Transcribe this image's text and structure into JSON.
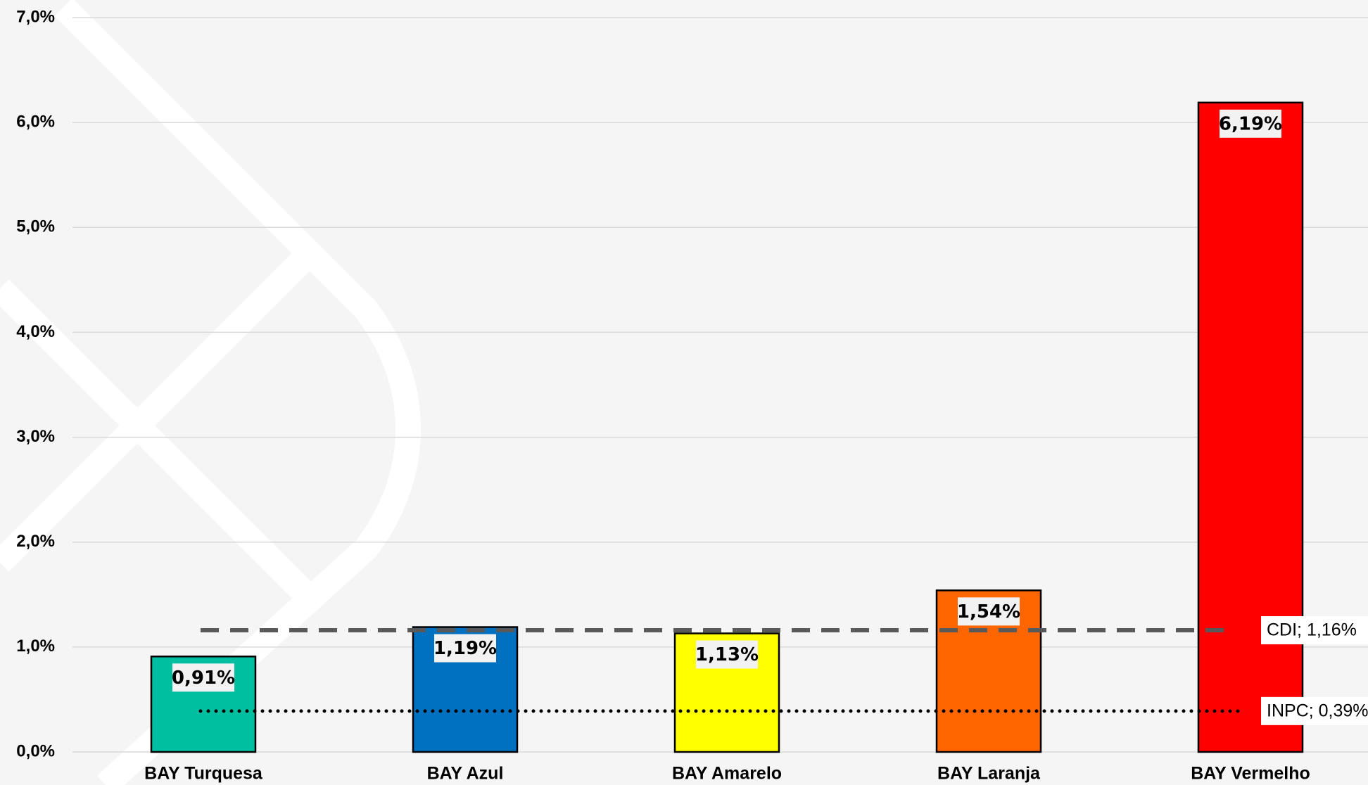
{
  "chart_data": {
    "type": "bar",
    "categories": [
      "BAY Turquesa",
      "BAY Azul",
      "BAY Amarelo",
      "BAY Laranja",
      "BAY Vermelho"
    ],
    "values": [
      0.91,
      1.19,
      1.13,
      1.54,
      6.19
    ],
    "value_labels": [
      "0,91%",
      "1,19%",
      "1,13%",
      "1,54%",
      "6,19%"
    ],
    "colors": [
      "#00bfa0",
      "#0070c0",
      "#ffff00",
      "#ff6600",
      "#ff0000"
    ],
    "ylim": [
      0,
      7
    ],
    "yticks": [
      {
        "value": 0,
        "label": "0,0%"
      },
      {
        "value": 1,
        "label": "1,0%"
      },
      {
        "value": 2,
        "label": "2,0%"
      },
      {
        "value": 3,
        "label": "3,0%"
      },
      {
        "value": 4,
        "label": "4,0%"
      },
      {
        "value": 5,
        "label": "5,0%"
      },
      {
        "value": 6,
        "label": "6,0%"
      },
      {
        "value": 7,
        "label": "7,0%"
      }
    ],
    "grid": true,
    "reference_lines": [
      {
        "value": 1.16,
        "label": "CDI; 1,16%",
        "style": "dashed",
        "color": "#595959"
      },
      {
        "value": 0.39,
        "label": "INPC; 0,39%",
        "style": "dotted",
        "color": "#000000"
      }
    ]
  }
}
